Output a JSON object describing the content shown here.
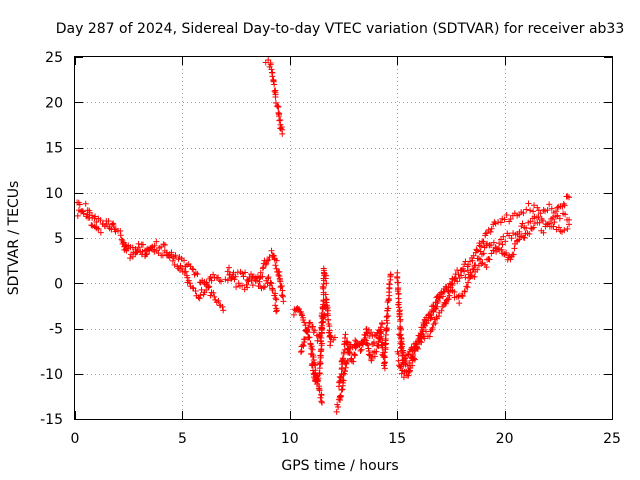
{
  "chart_data": {
    "type": "scatter",
    "title": "Day 287 of 2024, Sidereal Day-to-day VTEC variation (SDTVAR) for receiver ab33",
    "xlabel": "GPS time / hours",
    "ylabel": "SDTVAR / TECUs",
    "xlim": [
      0,
      25
    ],
    "ylim": [
      -15,
      25
    ],
    "xticks": [
      0,
      5,
      10,
      15,
      20,
      25
    ],
    "yticks": [
      -15,
      -10,
      -5,
      0,
      5,
      10,
      15,
      20,
      25
    ],
    "xtick_labels": [
      "0",
      "5",
      "10",
      "15",
      "20",
      "25"
    ],
    "ytick_labels": [
      "-15",
      "-10",
      "-5",
      "0",
      "5",
      "10",
      "15",
      "20",
      "25"
    ],
    "grid": true,
    "marker": "+",
    "color": "#ff0000",
    "series": [
      {
        "name": "SDTVAR",
        "tracks": [
          [
            [
              0.0,
              9.0
            ],
            [
              0.3,
              8.2
            ],
            [
              0.6,
              8.5
            ],
            [
              1.0,
              7.0
            ],
            [
              1.3,
              6.8
            ],
            [
              1.7,
              6.2
            ],
            [
              2.0,
              5.8
            ]
          ],
          [
            [
              0.1,
              7.8
            ],
            [
              0.5,
              7.5
            ],
            [
              0.9,
              6.5
            ],
            [
              1.2,
              6.0
            ],
            [
              1.6,
              6.5
            ],
            [
              1.9,
              6.0
            ]
          ],
          [
            [
              2.1,
              5.5
            ],
            [
              2.4,
              4.0
            ],
            [
              2.7,
              3.8
            ],
            [
              3.1,
              3.0
            ],
            [
              3.5,
              4.0
            ],
            [
              3.9,
              3.5
            ],
            [
              4.3,
              3.2
            ],
            [
              4.8,
              2.8
            ],
            [
              5.3,
              1.8
            ],
            [
              5.8,
              0.5
            ],
            [
              6.2,
              -0.5
            ],
            [
              6.6,
              -2.0
            ],
            [
              6.9,
              -3.0
            ]
          ],
          [
            [
              2.2,
              4.5
            ],
            [
              2.6,
              3.0
            ],
            [
              3.0,
              4.2
            ],
            [
              3.4,
              3.5
            ],
            [
              3.8,
              4.2
            ],
            [
              4.2,
              3.8
            ],
            [
              4.6,
              2.5
            ],
            [
              5.0,
              1.5
            ],
            [
              5.4,
              -0.5
            ],
            [
              5.8,
              -1.5
            ],
            [
              6.2,
              0.0
            ],
            [
              6.5,
              1.0
            ],
            [
              6.8,
              0.2
            ]
          ],
          [
            [
              7.0,
              0.5
            ],
            [
              7.4,
              0.8
            ],
            [
              7.8,
              1.2
            ],
            [
              8.2,
              0.0
            ],
            [
              8.6,
              0.5
            ],
            [
              8.9,
              2.5
            ],
            [
              9.2,
              3.5
            ],
            [
              9.5,
              1.0
            ],
            [
              9.6,
              -0.5
            ],
            [
              9.7,
              -2.0
            ]
          ],
          [
            [
              7.1,
              1.5
            ],
            [
              7.5,
              0.0
            ],
            [
              7.9,
              -0.5
            ],
            [
              8.3,
              1.0
            ],
            [
              8.7,
              -0.5
            ],
            [
              9.0,
              0.5
            ],
            [
              9.3,
              -1.5
            ],
            [
              9.4,
              -3.0
            ]
          ],
          [
            [
              8.9,
              24.5
            ],
            [
              9.1,
              24.0
            ],
            [
              9.2,
              23.0
            ],
            [
              9.3,
              21.5
            ],
            [
              9.4,
              20.0
            ],
            [
              9.5,
              18.5
            ],
            [
              9.6,
              17.0
            ],
            [
              9.65,
              16.5
            ]
          ],
          [
            [
              10.2,
              -3.5
            ],
            [
              10.4,
              -2.5
            ],
            [
              10.6,
              -4.0
            ],
            [
              10.8,
              -5.0
            ],
            [
              11.0,
              -7.0
            ],
            [
              11.2,
              -9.5
            ],
            [
              11.4,
              -12.0
            ],
            [
              11.5,
              -13.2
            ]
          ],
          [
            [
              10.5,
              -7.5
            ],
            [
              10.9,
              -4.5
            ],
            [
              11.3,
              -6.0
            ],
            [
              11.5,
              -5.0
            ],
            [
              11.7,
              -1.5
            ],
            [
              11.9,
              -6.5
            ],
            [
              12.1,
              -6.0
            ]
          ],
          [
            [
              11.0,
              -8.0
            ],
            [
              11.2,
              -11.0
            ],
            [
              11.4,
              -10.0
            ],
            [
              11.6,
              1.5
            ],
            [
              11.7,
              0.0
            ]
          ],
          [
            [
              12.2,
              -14.0
            ],
            [
              12.4,
              -12.0
            ],
            [
              12.6,
              -9.0
            ],
            [
              12.8,
              -7.0
            ],
            [
              13.0,
              -6.5
            ],
            [
              13.3,
              -7.5
            ],
            [
              13.6,
              -5.0
            ],
            [
              13.9,
              -6.5
            ],
            [
              14.2,
              -5.0
            ],
            [
              14.4,
              -9.0
            ],
            [
              14.6,
              -1.5
            ],
            [
              14.7,
              1.0
            ]
          ],
          [
            [
              12.3,
              -11.5
            ],
            [
              12.6,
              -6.0
            ],
            [
              12.9,
              -8.5
            ],
            [
              13.2,
              -6.5
            ],
            [
              13.5,
              -6.0
            ],
            [
              13.8,
              -8.5
            ],
            [
              14.1,
              -7.0
            ],
            [
              14.3,
              -4.5
            ]
          ],
          [
            [
              15.0,
              1.0
            ],
            [
              15.1,
              -3.0
            ],
            [
              15.2,
              -7.0
            ],
            [
              15.3,
              -9.0
            ],
            [
              15.5,
              -10.0
            ],
            [
              15.8,
              -8.0
            ],
            [
              16.1,
              -5.5
            ],
            [
              16.4,
              -4.0
            ],
            [
              16.8,
              -2.0
            ],
            [
              17.2,
              -1.0
            ],
            [
              17.6,
              0.5
            ],
            [
              18.0,
              1.5
            ],
            [
              18.4,
              2.5
            ],
            [
              18.8,
              4.0
            ],
            [
              19.2,
              5.5
            ],
            [
              19.6,
              6.5
            ],
            [
              20.0,
              7.0
            ],
            [
              20.4,
              7.5
            ],
            [
              20.8,
              8.0
            ],
            [
              21.2,
              8.5
            ],
            [
              21.6,
              8.0
            ],
            [
              22.0,
              8.5
            ],
            [
              22.4,
              8.0
            ],
            [
              22.8,
              9.0
            ],
            [
              23.0,
              9.5
            ]
          ],
          [
            [
              15.1,
              -6.0
            ],
            [
              15.4,
              -8.5
            ],
            [
              15.7,
              -7.0
            ],
            [
              16.0,
              -6.5
            ],
            [
              16.3,
              -4.0
            ],
            [
              16.6,
              -3.5
            ],
            [
              17.0,
              -1.5
            ],
            [
              17.4,
              -0.5
            ],
            [
              17.8,
              0.5
            ],
            [
              18.2,
              1.0
            ],
            [
              18.6,
              2.0
            ],
            [
              19.0,
              3.5
            ],
            [
              19.4,
              4.5
            ],
            [
              19.8,
              4.0
            ],
            [
              20.2,
              2.5
            ],
            [
              20.6,
              4.5
            ],
            [
              21.0,
              5.5
            ],
            [
              21.4,
              6.5
            ],
            [
              21.8,
              6.0
            ],
            [
              22.2,
              6.5
            ],
            [
              22.6,
              6.0
            ],
            [
              23.0,
              6.5
            ]
          ],
          [
            [
              15.0,
              -8.0
            ],
            [
              15.3,
              -10.0
            ],
            [
              15.6,
              -9.0
            ],
            [
              15.9,
              -6.5
            ],
            [
              16.2,
              -6.0
            ],
            [
              16.5,
              -5.5
            ],
            [
              16.8,
              -4.0
            ],
            [
              17.1,
              -3.0
            ],
            [
              17.5,
              -1.0
            ],
            [
              17.9,
              -2.0
            ],
            [
              18.3,
              0.0
            ],
            [
              18.7,
              1.5
            ],
            [
              19.1,
              2.0
            ],
            [
              19.5,
              3.5
            ],
            [
              20.0,
              5.0
            ],
            [
              20.5,
              5.5
            ],
            [
              21.0,
              6.5
            ],
            [
              21.5,
              7.0
            ],
            [
              22.0,
              6.5
            ],
            [
              22.5,
              7.5
            ],
            [
              23.0,
              7.0
            ]
          ]
        ]
      }
    ]
  }
}
